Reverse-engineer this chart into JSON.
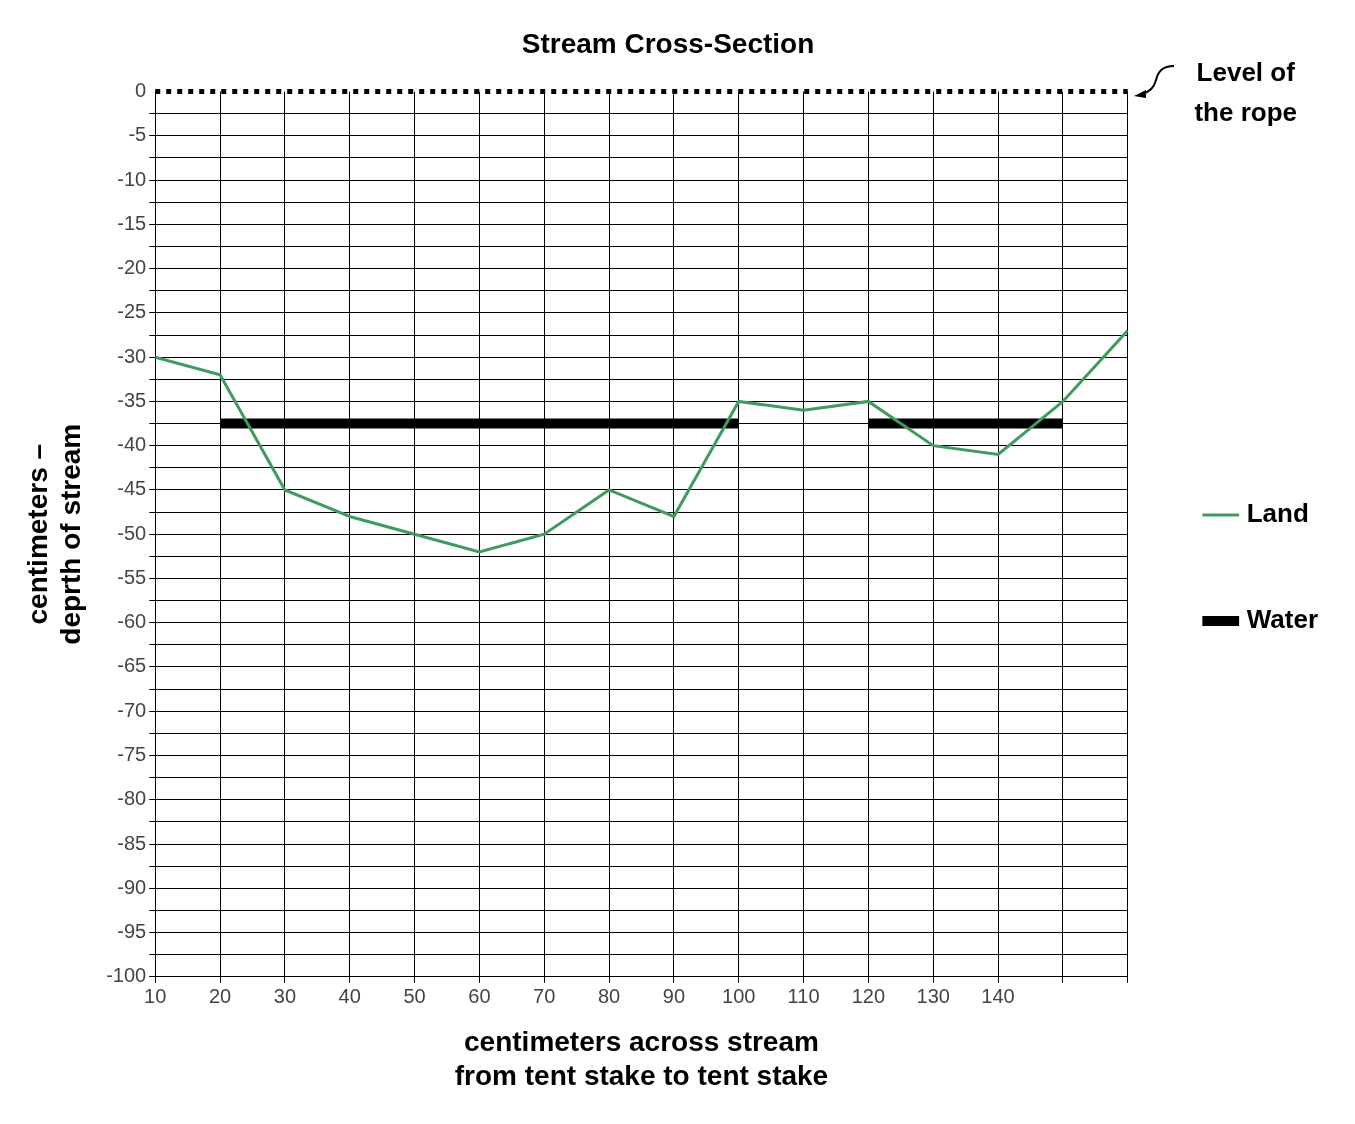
{
  "chart_data": {
    "type": "line",
    "title": "Stream Cross-Section",
    "xlabel": "centimeters across stream\nfrom tent stake to tent stake",
    "ylabel": "centimeters –\ndeprth of stream",
    "series": [
      {
        "name": "Land",
        "color": "#3f9b5f",
        "x": [
          10,
          20,
          30,
          40,
          50,
          60,
          70,
          80,
          90,
          100,
          110,
          120,
          130,
          140,
          150,
          160
        ],
        "values": [
          -30,
          -32,
          -45,
          -48,
          -50,
          -52,
          -50,
          -45,
          -48,
          -35,
          -36,
          -35,
          -40,
          -41,
          -35,
          -27
        ]
      },
      {
        "name": "Water",
        "color": "#000000",
        "x": [
          20,
          100,
          110,
          120,
          150
        ],
        "values": [
          -37.5,
          -37.5,
          null,
          -37.5,
          -37.5
        ]
      }
    ],
    "xlim": [
      10,
      160
    ],
    "ylim": [
      -100,
      0
    ],
    "xticks": [
      10,
      20,
      30,
      40,
      50,
      60,
      70,
      80,
      90,
      100,
      110,
      120,
      130,
      140,
      {
        "value": 150,
        "label": null
      },
      {
        "value": 160,
        "label": null
      }
    ],
    "yticks": [
      -100,
      {
        "value": -97.5,
        "label": null
      },
      -95,
      {
        "value": -92.5,
        "label": null
      },
      -90,
      {
        "value": -87.5,
        "label": null
      },
      -85,
      {
        "value": -82.5,
        "label": null
      },
      -80,
      {
        "value": -77.5,
        "label": null
      },
      -75,
      {
        "value": -72.5,
        "label": null
      },
      -70,
      {
        "value": -67.5,
        "label": null
      },
      -65,
      {
        "value": -62.5,
        "label": null
      },
      -60,
      {
        "value": -57.5,
        "label": null
      },
      -55,
      {
        "value": -52.5,
        "label": null
      },
      -50,
      {
        "value": -47.5,
        "label": null
      },
      -45,
      {
        "value": -42.5,
        "label": null
      },
      -40,
      {
        "value": -37.5,
        "label": null
      },
      -35,
      {
        "value": -32.5,
        "label": null
      },
      -30,
      {
        "value": -27.5,
        "label": null
      },
      -25,
      {
        "value": -22.5,
        "label": null
      },
      -20,
      {
        "value": -17.5,
        "label": null
      },
      -15,
      {
        "value": -12.5,
        "label": null
      },
      -10,
      {
        "value": -7.5,
        "label": null
      },
      -5,
      {
        "value": -2.5,
        "label": null
      },
      0
    ],
    "ref_lines": [
      {
        "axis": "y",
        "value": 0,
        "label": "Level of the rope",
        "line_style": "dotted",
        "color": "#000000"
      }
    ],
    "grid": true,
    "legend": "right"
  }
}
